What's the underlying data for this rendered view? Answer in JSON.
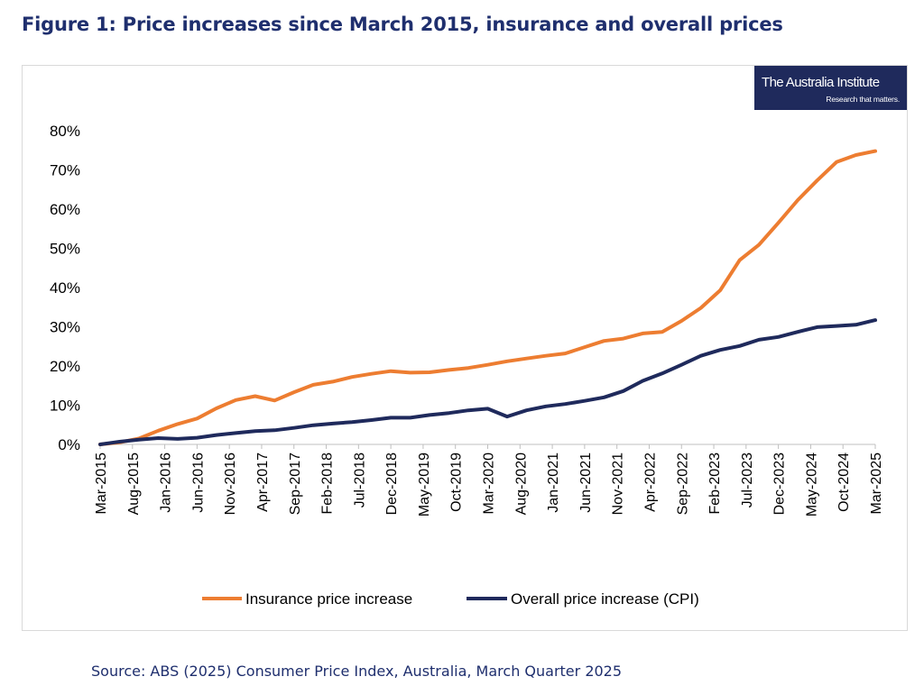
{
  "figure_title": "Figure 1: Price increases since March 2015, insurance and overall prices",
  "logo": {
    "name": "The Australia Institute",
    "tagline": "Research that matters."
  },
  "source": "Source: ABS (2025) Consumer Price Index, Australia, March Quarter 2025",
  "colors": {
    "insurance": "#ed7d31",
    "cpi": "#1f2a5c",
    "title": "#1f2f6e",
    "axis": "#bfbfbf"
  },
  "chart_data": {
    "type": "line",
    "title": "",
    "xlabel": "",
    "ylabel": "",
    "ylim": [
      0,
      0.8
    ],
    "y_ticks": [
      "0%",
      "10%",
      "20%",
      "30%",
      "40%",
      "50%",
      "60%",
      "70%",
      "80%"
    ],
    "grid": false,
    "legend_position": "bottom",
    "x": [
      "Mar-2015",
      "Jun-2015",
      "Sep-2015",
      "Dec-2015",
      "Mar-2016",
      "Jun-2016",
      "Sep-2016",
      "Dec-2016",
      "Mar-2017",
      "Jun-2017",
      "Sep-2017",
      "Dec-2017",
      "Mar-2018",
      "Jun-2018",
      "Sep-2018",
      "Dec-2018",
      "Mar-2019",
      "Jun-2019",
      "Sep-2019",
      "Dec-2019",
      "Mar-2020",
      "Jun-2020",
      "Sep-2020",
      "Dec-2020",
      "Mar-2021",
      "Jun-2021",
      "Sep-2021",
      "Dec-2021",
      "Mar-2022",
      "Jun-2022",
      "Sep-2022",
      "Dec-2022",
      "Mar-2023",
      "Jun-2023",
      "Sep-2023",
      "Dec-2023",
      "Mar-2024",
      "Jun-2024",
      "Sep-2024",
      "Dec-2024",
      "Mar-2025"
    ],
    "x_tick_labels": [
      "Mar-2015",
      "Aug-2015",
      "Jan-2016",
      "Jun-2016",
      "Nov-2016",
      "Apr-2017",
      "Sep-2017",
      "Feb-2018",
      "Jul-2018",
      "Dec-2018",
      "May-2019",
      "Oct-2019",
      "Mar-2020",
      "Aug-2020",
      "Jan-2021",
      "Jun-2021",
      "Nov-2021",
      "Apr-2022",
      "Sep-2022",
      "Feb-2023",
      "Jul-2023",
      "Dec-2023",
      "May-2024",
      "Oct-2024",
      "Mar-2025"
    ],
    "series": [
      {
        "name": "Insurance price increase",
        "values": [
          0.0,
          0.005,
          0.015,
          0.035,
          0.052,
          0.066,
          0.092,
          0.113,
          0.123,
          0.112,
          0.133,
          0.152,
          0.16,
          0.172,
          0.18,
          0.187,
          0.183,
          0.184,
          0.19,
          0.195,
          0.203,
          0.212,
          0.219,
          0.226,
          0.232,
          0.248,
          0.264,
          0.27,
          0.283,
          0.287,
          0.315,
          0.348,
          0.393,
          0.47,
          0.509,
          0.565,
          0.623,
          0.673,
          0.72,
          0.738,
          0.748
        ]
      },
      {
        "name": "Overall price increase (CPI)",
        "values": [
          0.0,
          0.007,
          0.012,
          0.016,
          0.014,
          0.017,
          0.024,
          0.029,
          0.034,
          0.036,
          0.042,
          0.049,
          0.053,
          0.057,
          0.062,
          0.068,
          0.068,
          0.075,
          0.08,
          0.087,
          0.091,
          0.071,
          0.087,
          0.097,
          0.103,
          0.111,
          0.12,
          0.136,
          0.162,
          0.181,
          0.203,
          0.226,
          0.241,
          0.251,
          0.267,
          0.274,
          0.287,
          0.299,
          0.302,
          0.305,
          0.317
        ]
      }
    ]
  }
}
